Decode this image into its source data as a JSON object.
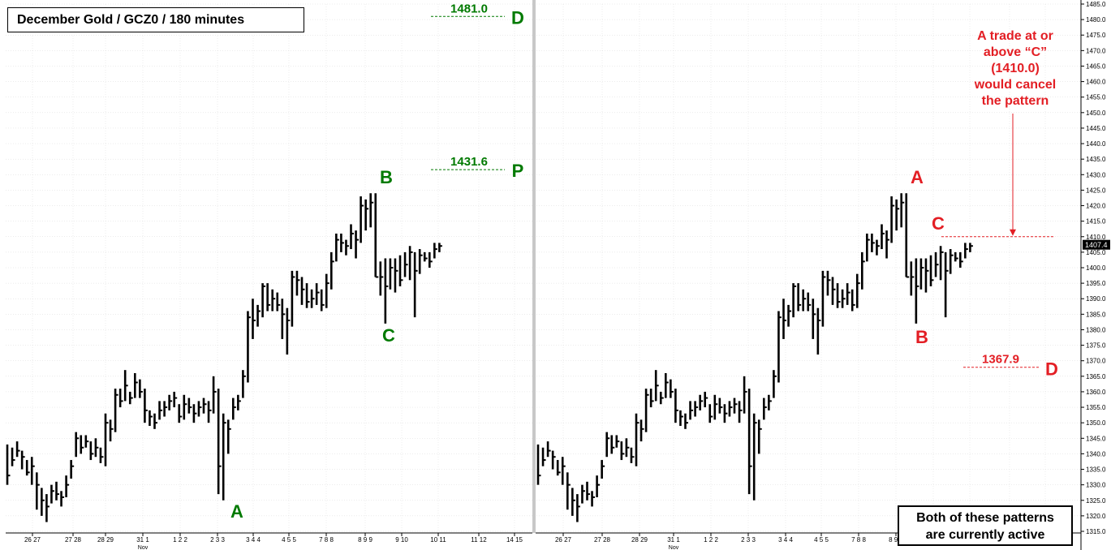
{
  "title": "December Gold  /  GCZ0  /  180 minutes",
  "note_box": [
    "Both of these patterns",
    "are currently active"
  ],
  "red_note": [
    "A trade at or",
    "above “C”",
    "(1410.0)",
    "would cancel",
    "the pattern"
  ],
  "colors": {
    "green": "#007a00",
    "red": "#e31e24",
    "bars": "#000000",
    "grid": "#d9d9d9"
  },
  "last_price_label": "1407.4",
  "chart_data": {
    "type": "ohlc-bar",
    "title": "December Gold  /  GCZ0  /  180 minutes",
    "ylim": [
      1315.0,
      1485.0
    ],
    "y_axis_side": "right",
    "y_ticks": [
      1315.0,
      1320.0,
      1325.0,
      1330.0,
      1335.0,
      1340.0,
      1345.0,
      1350.0,
      1355.0,
      1360.0,
      1365.0,
      1370.0,
      1375.0,
      1380.0,
      1385.0,
      1390.0,
      1395.0,
      1400.0,
      1405.0,
      1410.0,
      1415.0,
      1420.0,
      1425.0,
      1430.0,
      1435.0,
      1440.0,
      1445.0,
      1450.0,
      1455.0,
      1460.0,
      1465.0,
      1470.0,
      1475.0,
      1480.0,
      1485.0
    ],
    "x_tick_labels": [
      "26 27",
      "27 28",
      "28 29",
      "31 1",
      "1 2 2",
      "2 3 3",
      "3 4 4",
      "4 5 5",
      "7 8 8",
      "8 9 9",
      "9 10",
      "10 11",
      "11 12",
      "14 15"
    ],
    "x_sub_label": "Nov",
    "grid": true,
    "bars": [
      [
        1333,
        1343,
        1330
      ],
      [
        1338,
        1342,
        1336
      ],
      [
        1341,
        1344,
        1339
      ],
      [
        1339,
        1341,
        1335
      ],
      [
        1334,
        1338,
        1333
      ],
      [
        1336,
        1339,
        1330
      ],
      [
        1330,
        1334,
        1322
      ],
      [
        1325,
        1329,
        1320
      ],
      [
        1323,
        1327,
        1318
      ],
      [
        1328,
        1330,
        1324
      ],
      [
        1327,
        1331,
        1325
      ],
      [
        1326,
        1328,
        1323
      ],
      [
        1330,
        1333,
        1326
      ],
      [
        1336,
        1338,
        1332
      ],
      [
        1345,
        1347,
        1339
      ],
      [
        1342,
        1346,
        1340
      ],
      [
        1344,
        1346,
        1342
      ],
      [
        1340,
        1344,
        1338
      ],
      [
        1342,
        1345,
        1339
      ],
      [
        1339,
        1342,
        1337
      ],
      [
        1350,
        1353,
        1336
      ],
      [
        1348,
        1351,
        1344
      ],
      [
        1359,
        1361,
        1347
      ],
      [
        1357,
        1361,
        1355
      ],
      [
        1362,
        1367,
        1357
      ],
      [
        1358,
        1360,
        1356
      ],
      [
        1363,
        1366,
        1358
      ],
      [
        1360,
        1364,
        1358
      ],
      [
        1354,
        1361,
        1350
      ],
      [
        1352,
        1354,
        1349
      ],
      [
        1350,
        1353,
        1348
      ],
      [
        1354,
        1357,
        1351
      ],
      [
        1355,
        1357,
        1352
      ],
      [
        1357,
        1359,
        1354
      ],
      [
        1358,
        1360,
        1355
      ],
      [
        1352,
        1356,
        1350
      ],
      [
        1356,
        1359,
        1351
      ],
      [
        1355,
        1358,
        1353
      ],
      [
        1353,
        1356,
        1350
      ],
      [
        1355,
        1357,
        1352
      ],
      [
        1356,
        1358,
        1353
      ],
      [
        1354,
        1357,
        1350
      ],
      [
        1360,
        1365,
        1353
      ],
      [
        1336,
        1361,
        1327
      ],
      [
        1350,
        1353,
        1325
      ],
      [
        1348,
        1351,
        1340
      ],
      [
        1355,
        1358,
        1351
      ],
      [
        1357,
        1359,
        1354
      ],
      [
        1365,
        1367,
        1358
      ],
      [
        1384,
        1386,
        1363
      ],
      [
        1383,
        1390,
        1377
      ],
      [
        1386,
        1388,
        1381
      ],
      [
        1394,
        1395,
        1384
      ],
      [
        1388,
        1395,
        1386
      ],
      [
        1390,
        1393,
        1386
      ],
      [
        1388,
        1392,
        1386
      ],
      [
        1385,
        1390,
        1377
      ],
      [
        1383,
        1387,
        1372
      ],
      [
        1397,
        1399,
        1381
      ],
      [
        1396,
        1399,
        1391
      ],
      [
        1393,
        1397,
        1388
      ],
      [
        1389,
        1395,
        1387
      ],
      [
        1390,
        1393,
        1387
      ],
      [
        1392,
        1395,
        1388
      ],
      [
        1388,
        1393,
        1386
      ],
      [
        1395,
        1398,
        1387
      ],
      [
        1402,
        1405,
        1393
      ],
      [
        1409,
        1411,
        1402
      ],
      [
        1408,
        1411,
        1405
      ],
      [
        1407,
        1409,
        1404
      ],
      [
        1411,
        1414,
        1406
      ],
      [
        1409,
        1412,
        1403
      ],
      [
        1420,
        1423,
        1408
      ],
      [
        1419,
        1422,
        1412
      ],
      [
        1421,
        1424,
        1413
      ],
      [
        1397,
        1424,
        1397
      ],
      [
        1397,
        1402,
        1391
      ],
      [
        1394,
        1403,
        1382
      ],
      [
        1400,
        1403,
        1393
      ],
      [
        1399,
        1403,
        1392
      ],
      [
        1396,
        1404,
        1394
      ],
      [
        1401,
        1405,
        1397
      ],
      [
        1405,
        1407,
        1396
      ],
      [
        1399,
        1405,
        1384
      ],
      [
        1404,
        1406,
        1398
      ],
      [
        1403,
        1405,
        1402
      ],
      [
        1402,
        1405,
        1400
      ],
      [
        1406,
        1408,
        1403
      ],
      [
        1407,
        1408,
        1405
      ]
    ],
    "right_bars_offset": [
      0,
      0,
      0,
      0,
      0,
      0,
      0,
      0,
      0,
      0,
      0,
      0,
      0,
      0,
      0,
      0,
      0,
      0,
      0,
      0,
      0,
      0,
      0,
      0,
      0,
      0,
      0,
      0,
      0,
      0,
      0,
      0,
      0,
      0,
      0,
      0,
      0,
      0,
      0,
      0,
      0,
      0,
      0,
      0,
      0,
      0,
      0,
      0,
      0,
      0,
      0,
      0,
      0,
      0,
      0,
      0,
      0,
      0,
      0,
      0,
      0,
      0,
      0,
      0,
      0,
      0,
      0,
      0,
      0,
      0,
      0,
      0,
      0,
      0,
      0,
      0,
      0,
      0,
      0,
      0,
      0,
      0,
      0,
      0,
      0,
      0,
      0,
      0,
      0
    ],
    "left_annotations": {
      "points": [
        {
          "label": "A",
          "value": 1326
        },
        {
          "label": "B",
          "value": 1424
        },
        {
          "label": "C",
          "value": 1382
        }
      ],
      "levels": [
        {
          "label": "D",
          "value": 1481.0,
          "text": "1481.0"
        },
        {
          "label": "P",
          "value": 1431.6,
          "text": "1431.6"
        }
      ]
    },
    "right_annotations": {
      "points": [
        {
          "label": "A",
          "value": 1424
        },
        {
          "label": "B",
          "value": 1382
        },
        {
          "label": "C",
          "value": 1410
        }
      ],
      "levels": [
        {
          "label": "D",
          "value": 1367.9,
          "text": "1367.9"
        },
        {
          "label": "",
          "value": 1410.0,
          "text": ""
        }
      ]
    }
  }
}
